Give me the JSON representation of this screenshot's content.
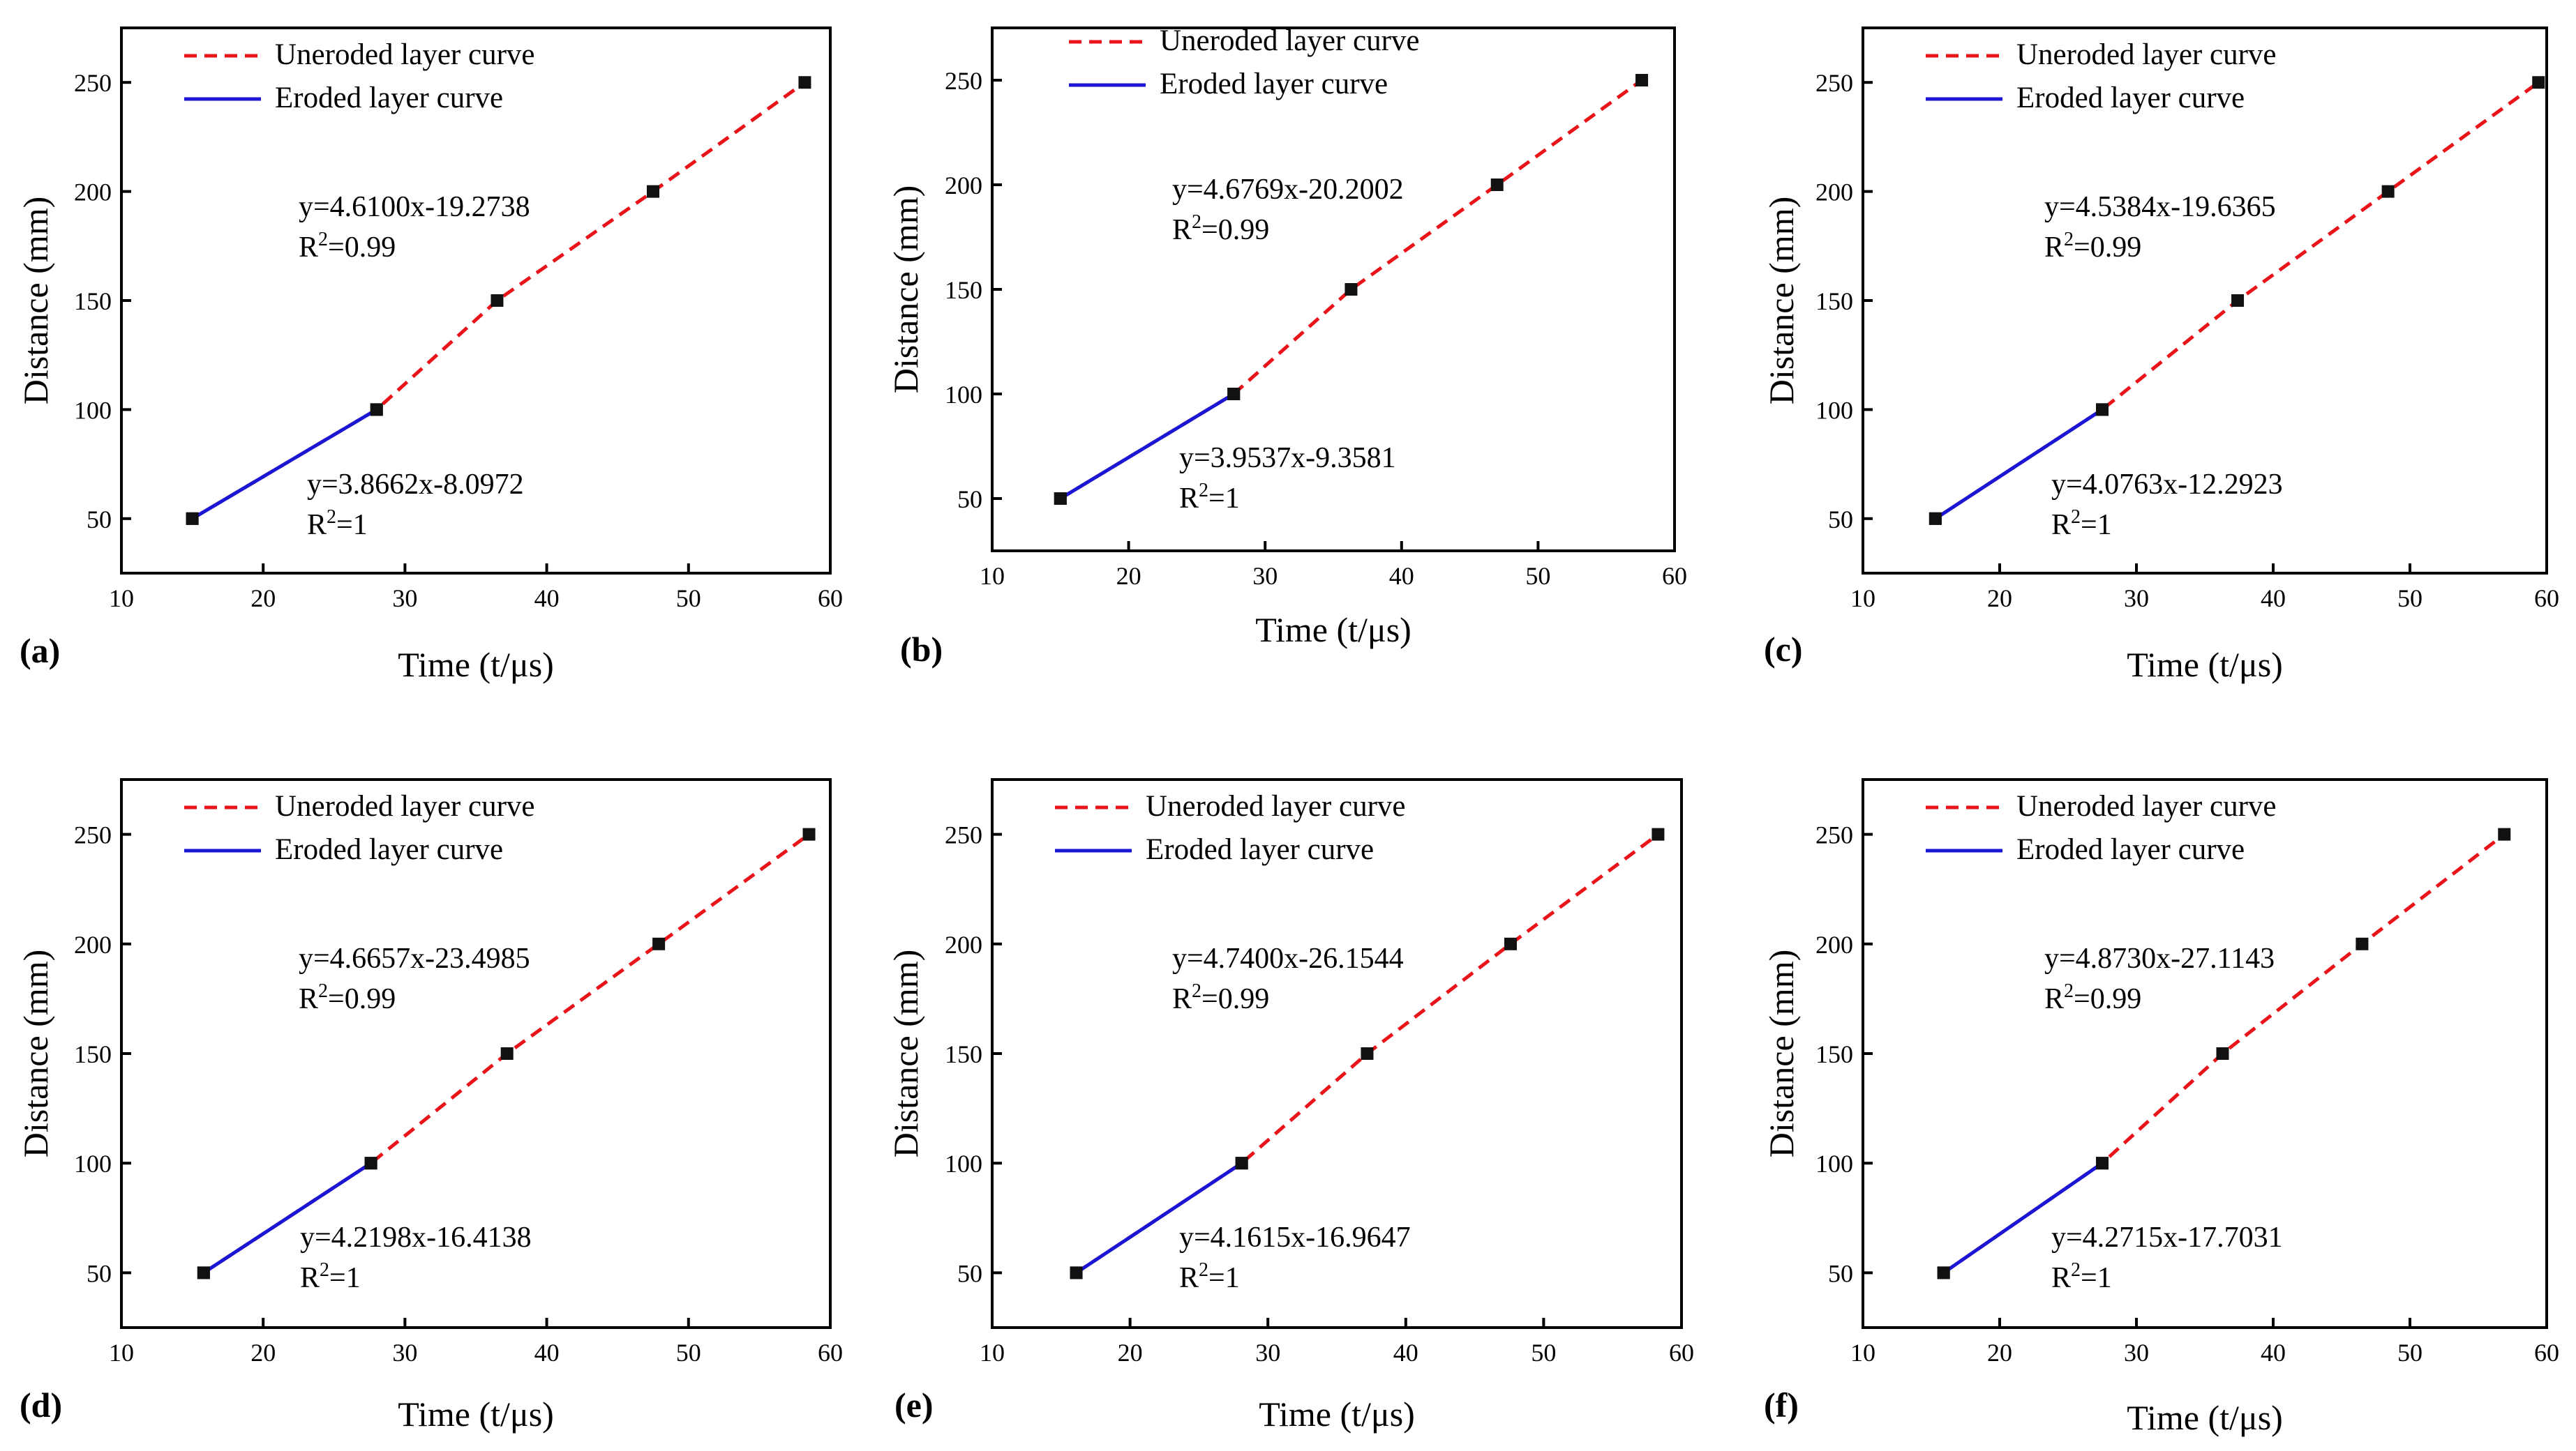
{
  "legend": {
    "unerodedLabel": "Uneroded layer curve",
    "erodedLabel": "Eroded layer curve"
  },
  "colors": {
    "uneroded": "#e8141a",
    "eroded": "#1a16d4",
    "marker": "#111111"
  },
  "chart_data": [
    {
      "panel": "(a)",
      "type": "line",
      "xlabel": "Time (t/μs)",
      "ylabel": "Distance (mm)",
      "xlim": [
        10,
        60
      ],
      "ylim": [
        25,
        275
      ],
      "xticks": [
        10,
        20,
        30,
        40,
        50,
        60
      ],
      "yticks": [
        50,
        100,
        150,
        200,
        250
      ],
      "series": [
        {
          "name": "Uneroded layer curve",
          "x": [
            15.0,
            28.0,
            36.5,
            47.5,
            58.2
          ],
          "y": [
            50,
            100,
            150,
            200,
            250
          ]
        },
        {
          "name": "Eroded layer curve",
          "x": [
            15.0,
            28.0
          ],
          "y": [
            50,
            100
          ]
        }
      ],
      "annotations": {
        "uneroded": {
          "equation": "y=4.6100x-19.2738",
          "r2_prefix": "R",
          "r2_sup": "2",
          "r2_value": "=0.99"
        },
        "eroded": {
          "equation": "y=3.8662x-8.0972",
          "r2_prefix": "R",
          "r2_sup": "2",
          "r2_value": "=1"
        }
      }
    },
    {
      "panel": "(b)",
      "type": "line",
      "xlabel": "Time (t/μs)",
      "ylabel": "Distance (mm)",
      "xlim": [
        10,
        60
      ],
      "ylim": [
        25,
        275
      ],
      "xticks": [
        10,
        20,
        30,
        40,
        50,
        60
      ],
      "yticks": [
        50,
        100,
        150,
        200,
        250
      ],
      "series": [
        {
          "name": "Uneroded layer curve",
          "x": [
            15.0,
            27.7,
            36.3,
            47.0,
            57.6
          ],
          "y": [
            50,
            100,
            150,
            200,
            250
          ]
        },
        {
          "name": "Eroded layer curve",
          "x": [
            15.0,
            27.7
          ],
          "y": [
            50,
            100
          ]
        }
      ],
      "annotations": {
        "uneroded": {
          "equation": "y=4.6769x-20.2002",
          "r2_prefix": "R",
          "r2_sup": "2",
          "r2_value": "=0.99"
        },
        "eroded": {
          "equation": "y=3.9537x-9.3581",
          "r2_prefix": "R",
          "r2_sup": "2",
          "r2_value": "=1"
        }
      }
    },
    {
      "panel": "(c)",
      "type": "line",
      "xlabel": "Time (t/μs)",
      "ylabel": "Distance (mm)",
      "xlim": [
        10,
        60
      ],
      "ylim": [
        25,
        275
      ],
      "xticks": [
        10,
        20,
        30,
        40,
        50,
        60
      ],
      "yticks": [
        50,
        100,
        150,
        200,
        250
      ],
      "series": [
        {
          "name": "Uneroded layer curve",
          "x": [
            15.3,
            27.5,
            37.4,
            48.4,
            59.4
          ],
          "y": [
            50,
            100,
            150,
            200,
            250
          ]
        },
        {
          "name": "Eroded layer curve",
          "x": [
            15.3,
            27.5
          ],
          "y": [
            50,
            100
          ]
        }
      ],
      "annotations": {
        "uneroded": {
          "equation": "y=4.5384x-19.6365",
          "r2_prefix": "R",
          "r2_sup": "2",
          "r2_value": "=0.99"
        },
        "eroded": {
          "equation": "y=4.0763x-12.2923",
          "r2_prefix": "R",
          "r2_sup": "2",
          "r2_value": "=1"
        }
      }
    },
    {
      "panel": "(d)",
      "type": "line",
      "xlabel": "Time (t/μs)",
      "ylabel": "Distance (mm)",
      "xlim": [
        10,
        60
      ],
      "ylim": [
        25,
        275
      ],
      "xticks": [
        10,
        20,
        30,
        40,
        50,
        60
      ],
      "yticks": [
        50,
        100,
        150,
        200,
        250
      ],
      "series": [
        {
          "name": "Uneroded layer curve",
          "x": [
            15.8,
            27.6,
            37.2,
            47.9,
            58.5
          ],
          "y": [
            50,
            100,
            150,
            200,
            250
          ]
        },
        {
          "name": "Eroded layer curve",
          "x": [
            15.8,
            27.6
          ],
          "y": [
            50,
            100
          ]
        }
      ],
      "annotations": {
        "uneroded": {
          "equation": "y=4.6657x-23.4985",
          "r2_prefix": "R",
          "r2_sup": "2",
          "r2_value": "=0.99"
        },
        "eroded": {
          "equation": "y=4.2198x-16.4138",
          "r2_prefix": "R",
          "r2_sup": "2",
          "r2_value": "=1"
        }
      }
    },
    {
      "panel": "(e)",
      "type": "line",
      "xlabel": "Time (t/μs)",
      "ylabel": "Distance (mm)",
      "xlim": [
        10,
        60
      ],
      "ylim": [
        25,
        275
      ],
      "xticks": [
        10,
        20,
        30,
        40,
        50,
        60
      ],
      "yticks": [
        50,
        100,
        150,
        200,
        250
      ],
      "series": [
        {
          "name": "Uneroded layer curve",
          "x": [
            16.1,
            28.1,
            37.2,
            47.6,
            58.3
          ],
          "y": [
            50,
            100,
            150,
            200,
            250
          ]
        },
        {
          "name": "Eroded layer curve",
          "x": [
            16.1,
            28.1
          ],
          "y": [
            50,
            100
          ]
        }
      ],
      "annotations": {
        "uneroded": {
          "equation": "y=4.7400x-26.1544",
          "r2_prefix": "R",
          "r2_sup": "2",
          "r2_value": "=0.99"
        },
        "eroded": {
          "equation": "y=4.1615x-16.9647",
          "r2_prefix": "R",
          "r2_sup": "2",
          "r2_value": "=1"
        }
      }
    },
    {
      "panel": "(f)",
      "type": "line",
      "xlabel": "Time (t/μs)",
      "ylabel": "Distance (mm)",
      "xlim": [
        10,
        60
      ],
      "ylim": [
        25,
        275
      ],
      "xticks": [
        10,
        20,
        30,
        40,
        50,
        60
      ],
      "yticks": [
        50,
        100,
        150,
        200,
        250
      ],
      "series": [
        {
          "name": "Uneroded layer curve",
          "x": [
            15.9,
            27.5,
            36.3,
            46.5,
            56.9
          ],
          "y": [
            50,
            100,
            150,
            200,
            250
          ]
        },
        {
          "name": "Eroded layer curve",
          "x": [
            15.9,
            27.5
          ],
          "y": [
            50,
            100
          ]
        }
      ],
      "annotations": {
        "uneroded": {
          "equation": "y=4.8730x-27.1143",
          "r2_prefix": "R",
          "r2_sup": "2",
          "r2_value": "=0.99"
        },
        "eroded": {
          "equation": "y=4.2715x-17.7031",
          "r2_prefix": "R",
          "r2_sup": "2",
          "r2_value": "=1"
        }
      }
    }
  ]
}
